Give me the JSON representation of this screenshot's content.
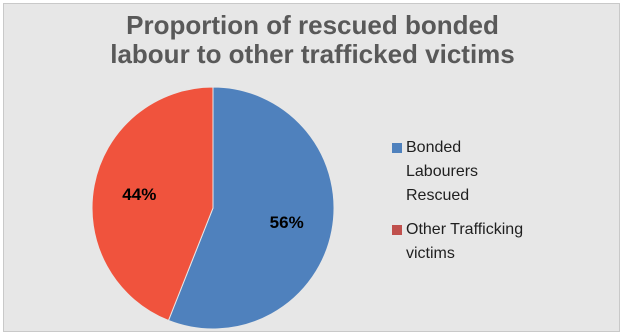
{
  "chart_data": {
    "type": "pie",
    "title": [
      "Proportion of rescued bonded",
      "labour to other trafficked victims"
    ],
    "categories": [
      "Bonded Labourers Rescued",
      "Other Trafficking victims"
    ],
    "legend_lines": [
      [
        "Bonded",
        "Labourers",
        "Rescued"
      ],
      [
        "Other Trafficking",
        "victims"
      ]
    ],
    "values": [
      56,
      44
    ],
    "data_labels": [
      "56%",
      "44%"
    ],
    "colors": [
      "#4f81bd",
      "#f0533d"
    ],
    "legend_swatch_colors": [
      "#4f81bd",
      "#c0504d"
    ],
    "start_angle_deg": 0,
    "direction": "clockwise",
    "legend_position": "right"
  }
}
